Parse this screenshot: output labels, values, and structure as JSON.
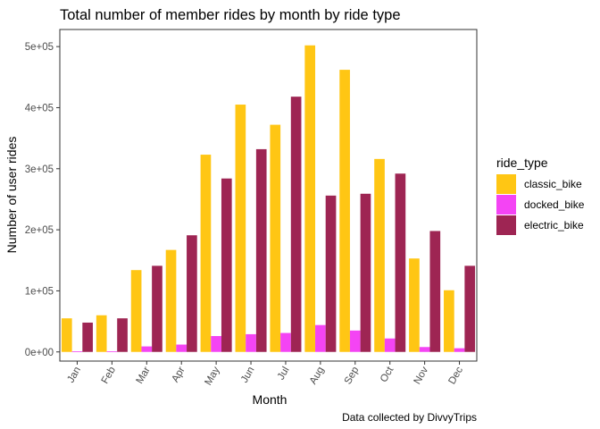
{
  "chart_data": {
    "type": "bar",
    "title": "Total number of member rides by month by ride type",
    "xlabel": "Month",
    "ylabel": "Number of user rides",
    "caption": "Data collected by DivvyTrips",
    "legend_title": "ride_type",
    "legend_position": "right",
    "grid": false,
    "ylim": [
      -15000,
      528000
    ],
    "y_ticks": [
      0,
      100000,
      200000,
      300000,
      400000,
      500000
    ],
    "y_tick_labels": [
      "0e+00",
      "1e+05",
      "2e+05",
      "3e+05",
      "4e+05",
      "5e+05"
    ],
    "categories": [
      "Jan",
      "Feb",
      "Mar",
      "Apr",
      "May",
      "Jun",
      "Jul",
      "Aug",
      "Sep",
      "Oct",
      "Nov",
      "Dec"
    ],
    "series": [
      {
        "name": "classic_bike",
        "color": "#FFC614",
        "values": [
          55000,
          60000,
          134000,
          167000,
          323000,
          405000,
          372000,
          502000,
          462000,
          316000,
          153000,
          101000
        ]
      },
      {
        "name": "docked_bike",
        "color": "#F444F4",
        "values": [
          1000,
          1000,
          9000,
          12000,
          26000,
          29000,
          31000,
          44000,
          35000,
          22000,
          8000,
          6000
        ]
      },
      {
        "name": "electric_bike",
        "color": "#9E2553",
        "values": [
          48000,
          55000,
          141000,
          191000,
          284000,
          332000,
          418000,
          256000,
          259000,
          292000,
          198000,
          141000
        ]
      }
    ]
  }
}
